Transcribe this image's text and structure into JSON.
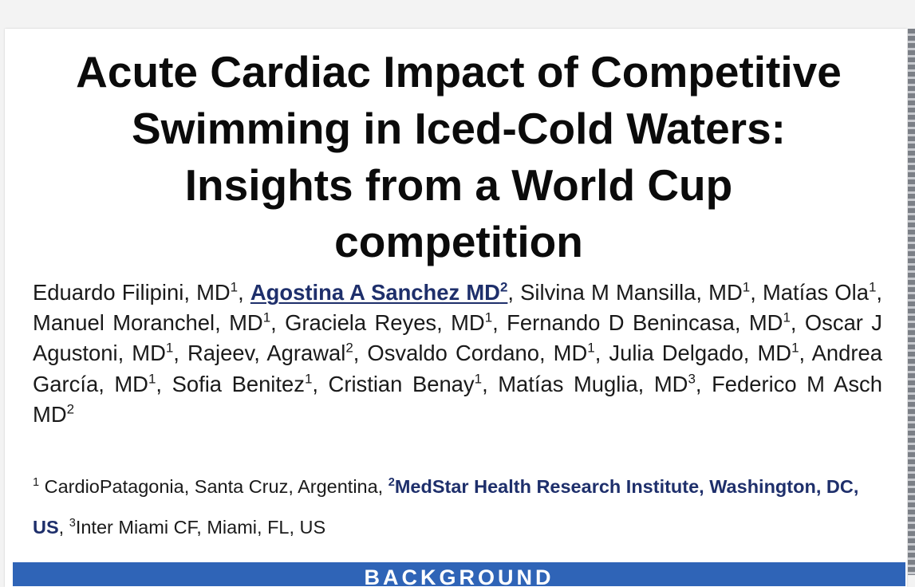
{
  "poster": {
    "title_lines": [
      "Acute Cardiac Impact of Competitive",
      "Swimming in Iced-Cold Waters:",
      "Insights from a World Cup",
      "competition"
    ],
    "authors": [
      {
        "name": "Eduardo Filipini, MD",
        "sup": "1",
        "sep": ", "
      },
      {
        "name": "Agostina A Sanchez MD",
        "sup": "2",
        "sep": ", ",
        "presenter": true
      },
      {
        "name": "Silvina M Mansilla, MD",
        "sup": "1",
        "sep": ", "
      },
      {
        "name": "Matías Ola",
        "sup": "1",
        "sep": ", "
      },
      {
        "name": "Manuel Moranchel, MD",
        "sup": "1",
        "sep": ", "
      },
      {
        "name": "Graciela Reyes, MD",
        "sup": "1",
        "sep": ", "
      },
      {
        "name": "Fernando D Benincasa, MD",
        "sup": "1",
        "sep": ", "
      },
      {
        "name": "Oscar J Agustoni, MD",
        "sup": "1",
        "sep": ", "
      },
      {
        "name": "Rajeev, Agrawal",
        "sup": "2",
        "sep": ", "
      },
      {
        "name": "Osvaldo Cordano, MD",
        "sup": "1",
        "sep": ", "
      },
      {
        "name": "Julia Delgado, MD",
        "sup": "1",
        "sep": ", "
      },
      {
        "name": "Andrea García, MD",
        "sup": "1",
        "sep": ", "
      },
      {
        "name": "Sofia Benitez",
        "sup": "1",
        "sep": ", "
      },
      {
        "name": "Cristian Benay",
        "sup": "1",
        "sep": ", "
      },
      {
        "name": "Matías Muglia, MD",
        "sup": "3",
        "sep": ", "
      },
      {
        "name": "Federico M Asch MD",
        "sup": "2",
        "sep": ""
      }
    ],
    "affiliations": {
      "a1_sup": "1",
      "a1_text": " CardioPatagonia, Santa Cruz, Argentina, ",
      "a2_sup": "2",
      "a2_text": "MedStar Health Research Institute, Washington, DC, US",
      "sep": ", ",
      "a3_sup": "3",
      "a3_text": "Inter Miami CF, Miami, FL, US"
    },
    "section_header": "BACKGROUND",
    "colors": {
      "institution_text": "#1e2f6b",
      "section_bar": "#2f64b7",
      "title_text": "#0b0b0b"
    }
  }
}
